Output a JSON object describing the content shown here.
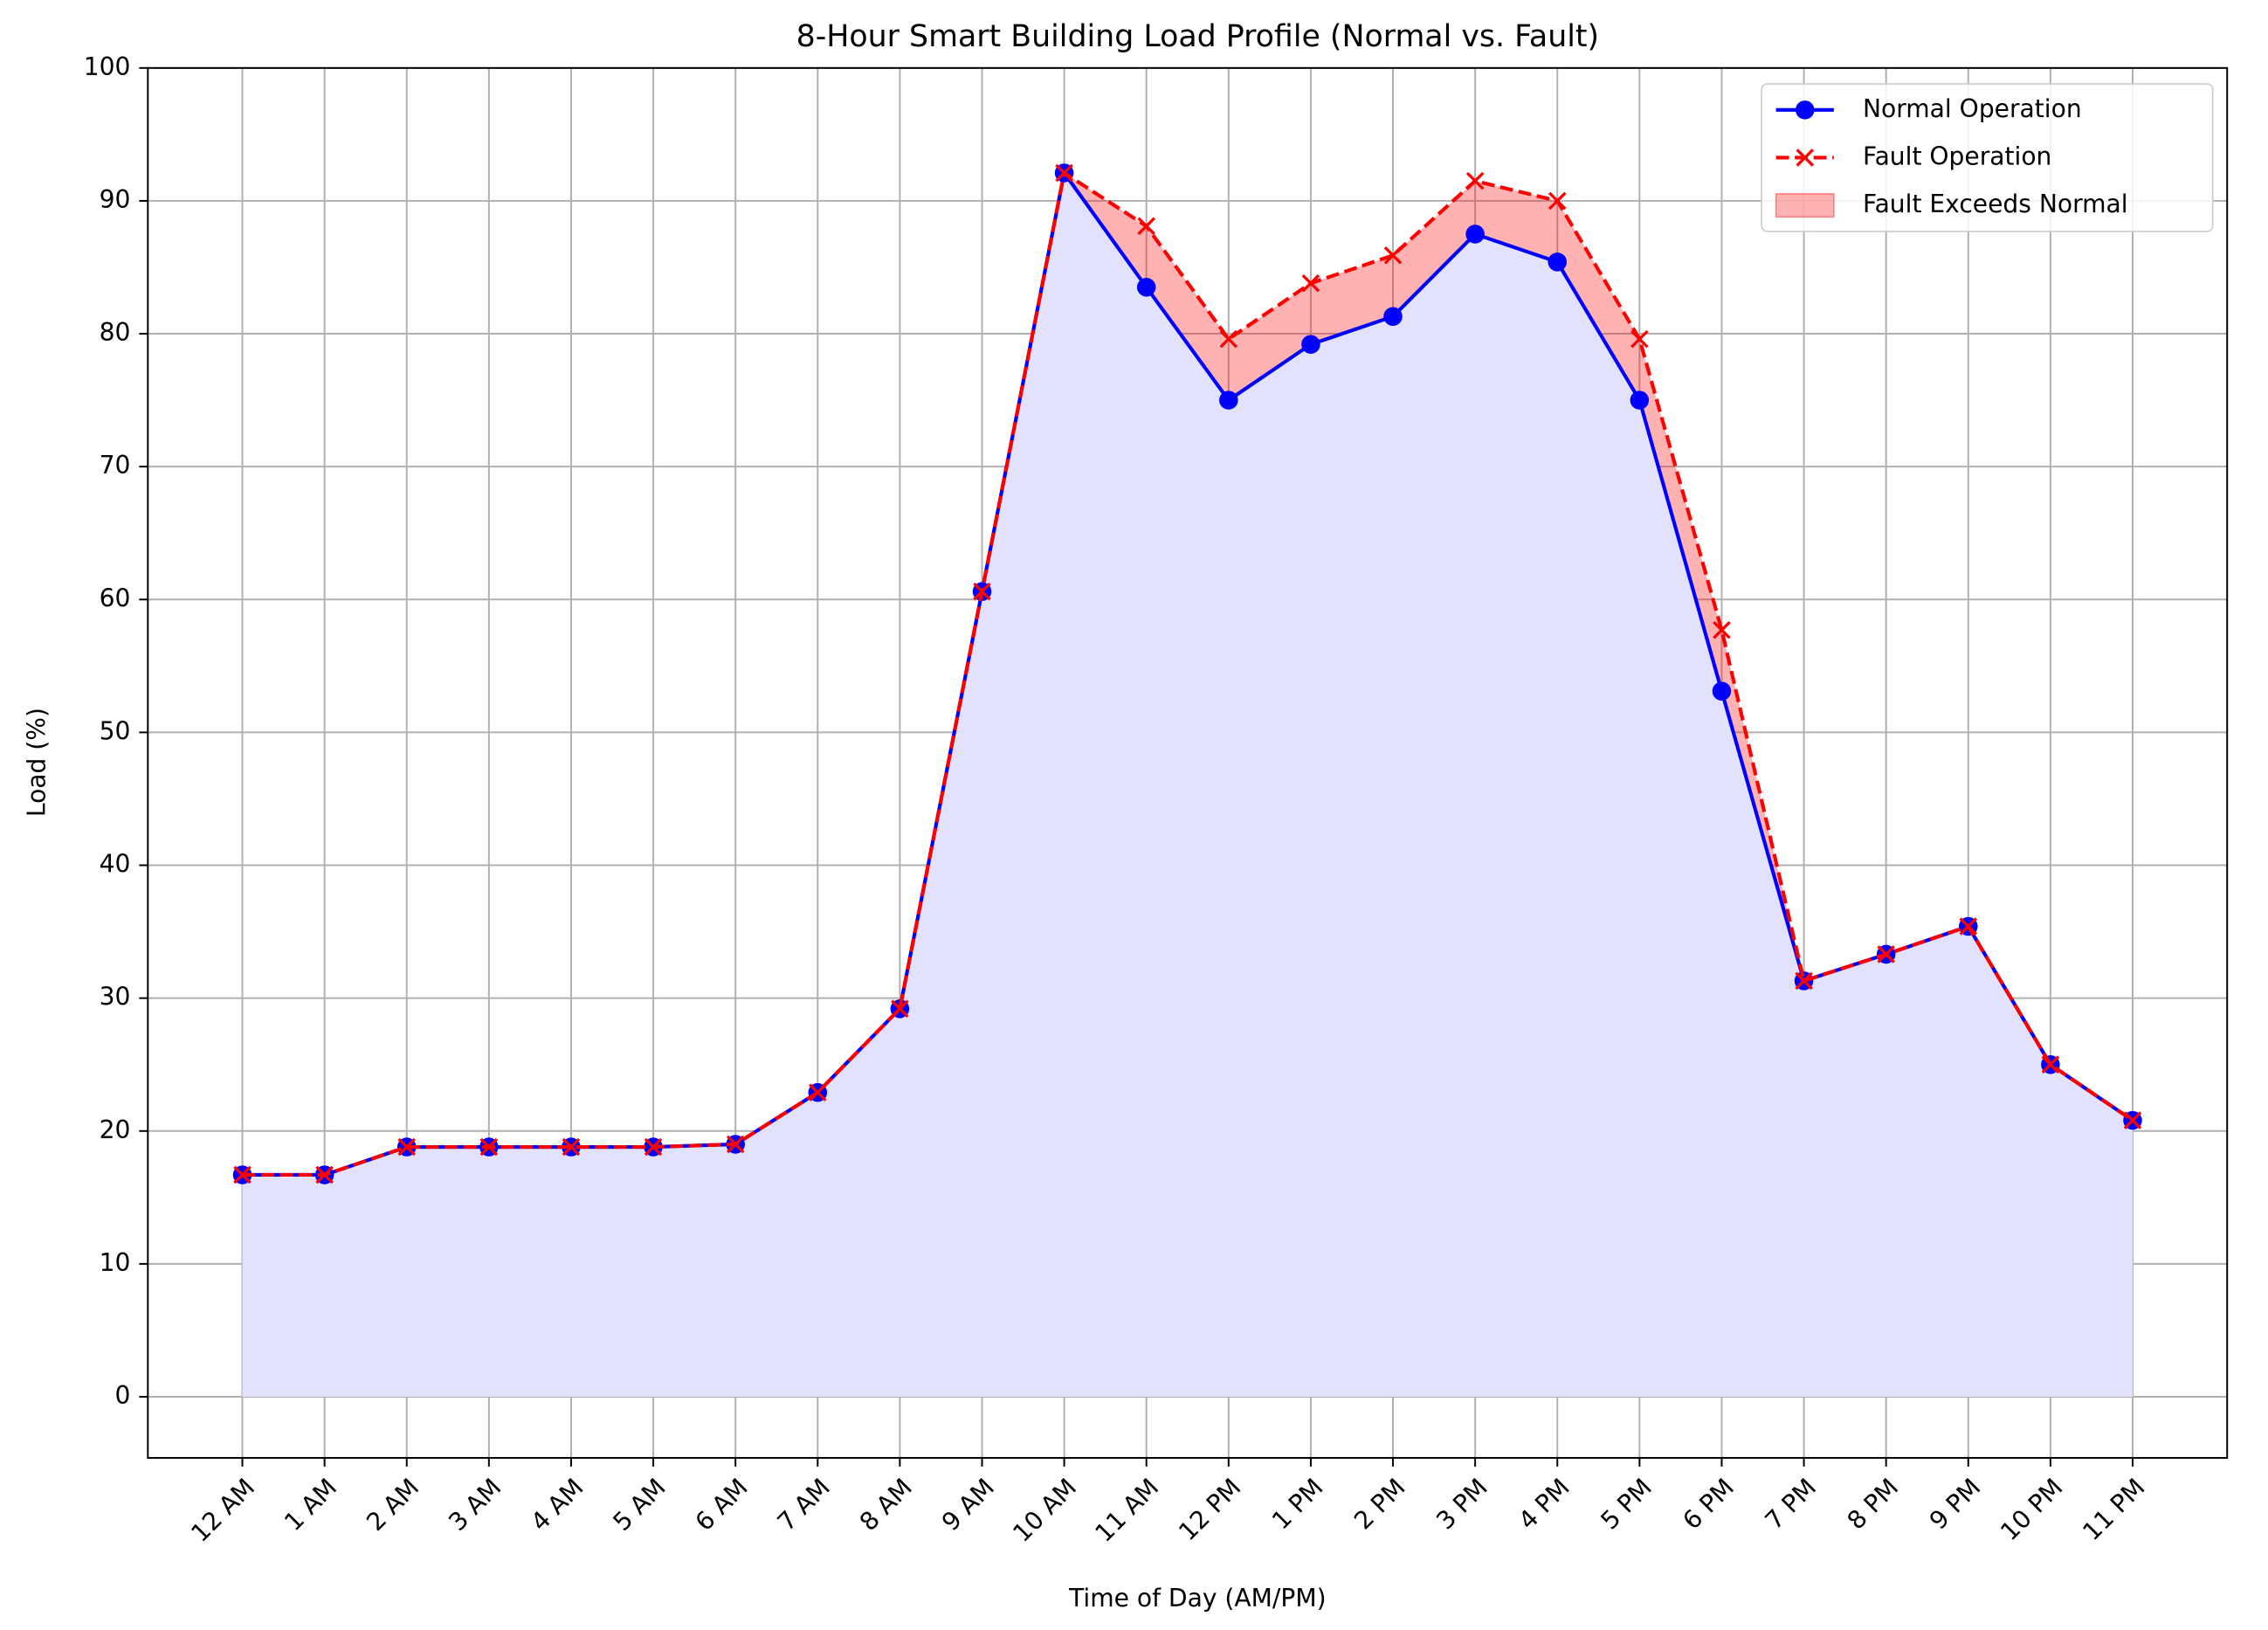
{
  "chart_data": {
    "type": "line",
    "title": "8-Hour Smart Building Load Profile (Normal vs. Fault)",
    "x_label": "Time of Day (AM/PM)",
    "y_label": "Load (%)",
    "categories": [
      "12 AM",
      "1 AM",
      "2 AM",
      "3 AM",
      "4 AM",
      "5 AM",
      "6 AM",
      "7 AM",
      "8 AM",
      "9 AM",
      "10 AM",
      "11 AM",
      "12 PM",
      "1 PM",
      "2 PM",
      "3 PM",
      "4 PM",
      "5 PM",
      "6 PM",
      "7 PM",
      "8 PM",
      "9 PM",
      "10 PM",
      "11 PM"
    ],
    "series": [
      {
        "name": "Normal Operation",
        "color": "#0000ff",
        "marker": "circle",
        "dash": false,
        "area_color": "#e2e2ff",
        "values": [
          16.7,
          16.7,
          18.8,
          18.8,
          18.8,
          18.8,
          19.0,
          22.9,
          29.2,
          60.6,
          92.1,
          83.5,
          75.0,
          79.2,
          81.3,
          87.5,
          85.4,
          75.0,
          53.1,
          31.3,
          33.3,
          35.4,
          25.0,
          20.8
        ]
      },
      {
        "name": "Fault Operation",
        "color": "#ff0000",
        "marker": "x",
        "dash": true,
        "values": [
          16.7,
          16.7,
          18.8,
          18.8,
          18.8,
          18.8,
          19.0,
          22.9,
          29.2,
          60.6,
          92.1,
          88.1,
          79.6,
          83.8,
          85.9,
          91.5,
          90.0,
          79.6,
          57.7,
          31.3,
          33.3,
          35.4,
          25.0,
          20.8
        ]
      }
    ],
    "fill": {
      "name": "Fault Exceeds Normal",
      "color": "#ff0000",
      "opacity": 0.3
    },
    "ylim": [
      -4.6,
      100
    ],
    "yticks": [
      0,
      10,
      20,
      30,
      40,
      50,
      60,
      70,
      80,
      90,
      100
    ],
    "grid": true,
    "legend": "upper right"
  }
}
